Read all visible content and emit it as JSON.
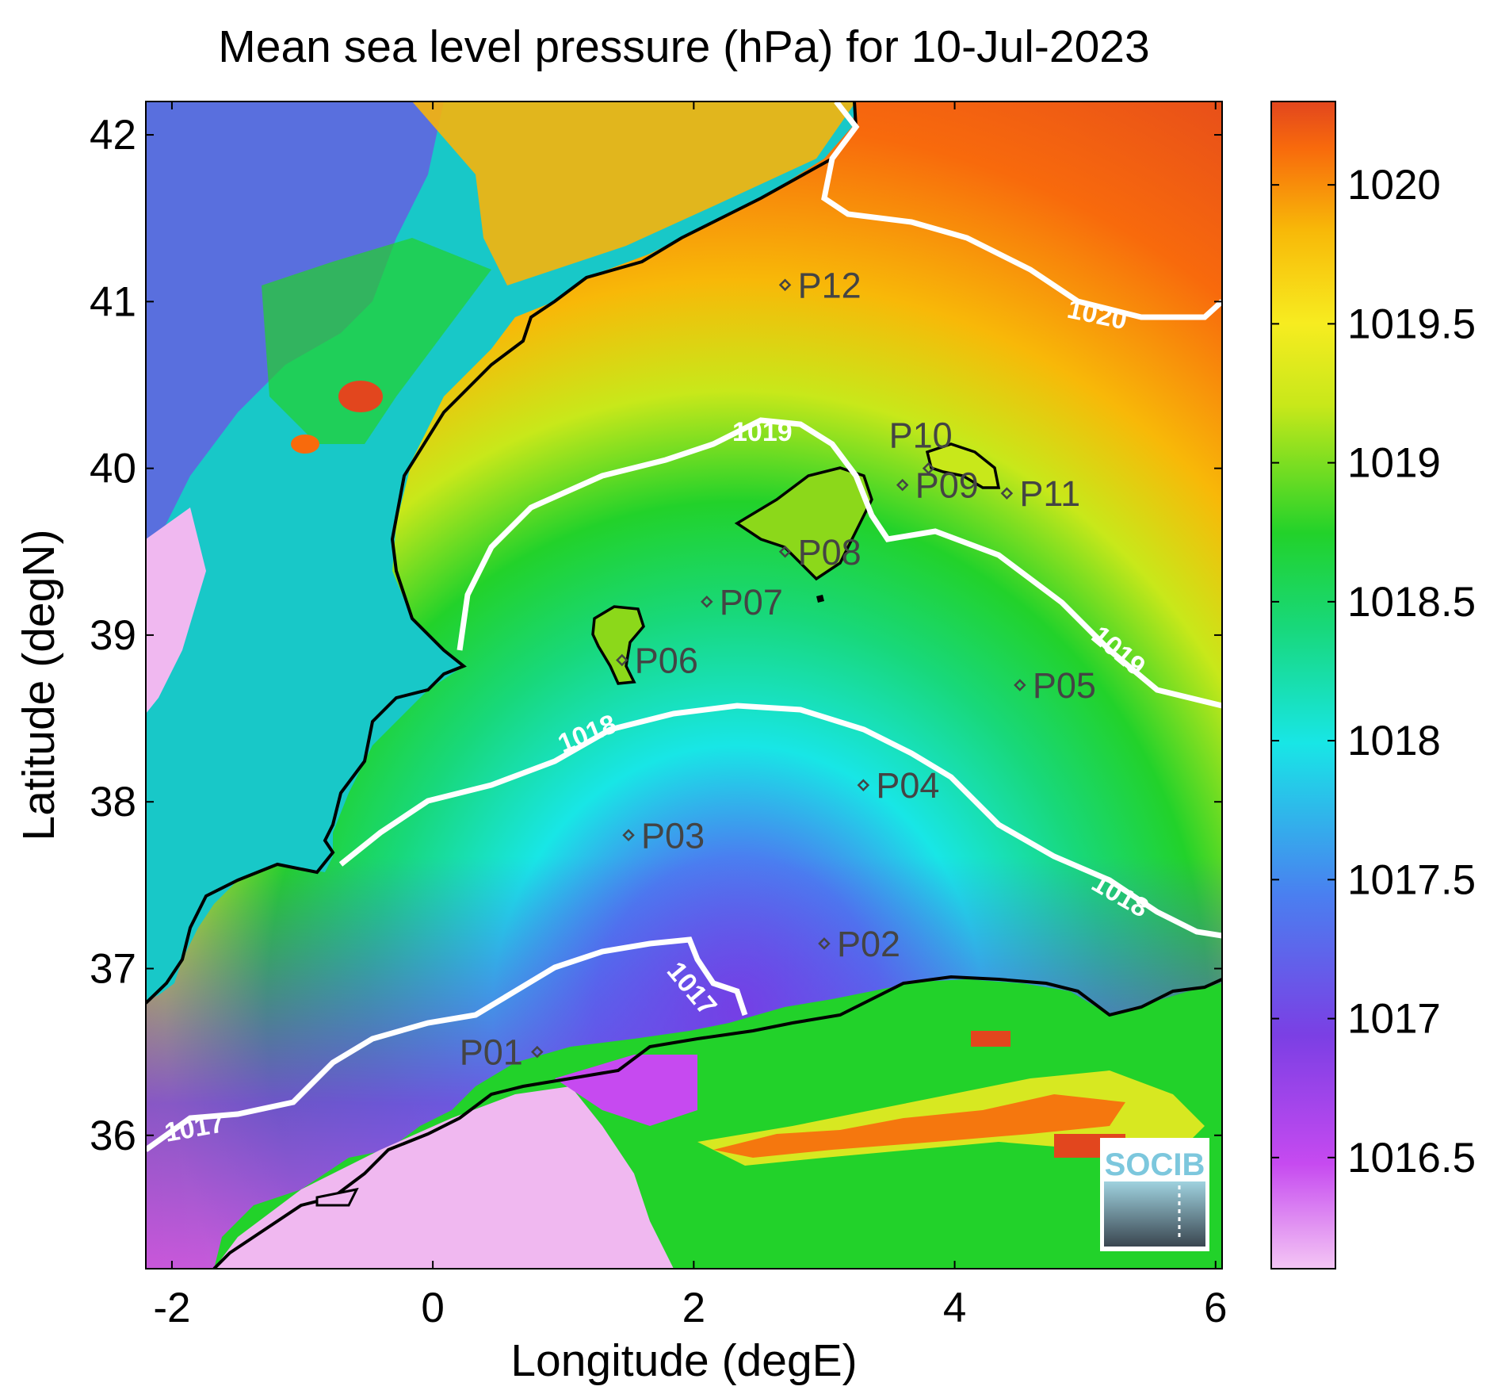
{
  "title": "Mean sea level pressure (hPa) for 10-Jul-2023",
  "xlabel": "Longitude (degE)",
  "ylabel": "Latitude (degN)",
  "xlim": [
    -2.2,
    6.05
  ],
  "ylim": [
    35.2,
    42.2
  ],
  "xticks": [
    "-2",
    "0",
    "2",
    "4",
    "6"
  ],
  "yticks": [
    "36",
    "37",
    "38",
    "39",
    "40",
    "41",
    "42"
  ],
  "colorbar": {
    "ticks": [
      "1016.5",
      "1017",
      "1017.5",
      "1018",
      "1018.5",
      "1019",
      "1019.5",
      "1020"
    ],
    "range": [
      1016.1,
      1020.3
    ],
    "colors": [
      "#f4c6f4",
      "#c64af0",
      "#7b3fe4",
      "#4a7ff0",
      "#18e6e6",
      "#18d87a",
      "#22d22a",
      "#c8e81a",
      "#f7ec20",
      "#f8b808",
      "#f86a0c",
      "#e2461e"
    ]
  },
  "contour_labels": [
    "1020",
    "1019",
    "1019",
    "1018",
    "1018",
    "1017",
    "1017"
  ],
  "points": [
    {
      "id": "P01",
      "lon": 0.8,
      "lat": 36.5
    },
    {
      "id": "P02",
      "lon": 3.0,
      "lat": 37.15
    },
    {
      "id": "P03",
      "lon": 1.5,
      "lat": 37.8
    },
    {
      "id": "P04",
      "lon": 3.3,
      "lat": 38.1
    },
    {
      "id": "P05",
      "lon": 4.5,
      "lat": 38.7
    },
    {
      "id": "P06",
      "lon": 1.45,
      "lat": 38.85
    },
    {
      "id": "P07",
      "lon": 2.1,
      "lat": 39.2
    },
    {
      "id": "P08",
      "lon": 2.7,
      "lat": 39.5
    },
    {
      "id": "P09",
      "lon": 3.6,
      "lat": 39.9
    },
    {
      "id": "P10",
      "lon": 3.8,
      "lat": 40.0
    },
    {
      "id": "P11",
      "lon": 4.4,
      "lat": 39.85
    },
    {
      "id": "P12",
      "lon": 2.7,
      "lat": 41.1
    }
  ],
  "logo": {
    "text": "SOCIB"
  }
}
